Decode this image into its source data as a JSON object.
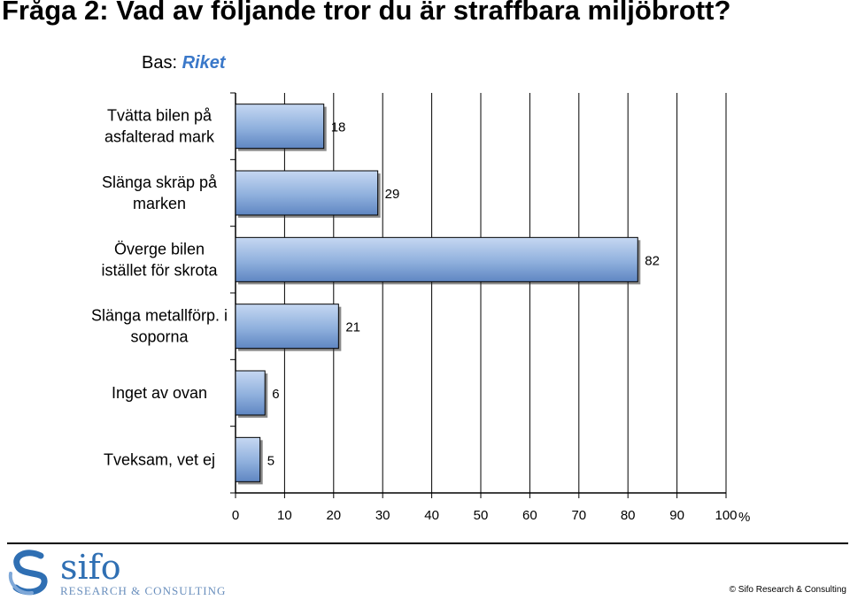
{
  "title": "Fråga 2:  Vad av följande tror du är straffbara miljöbrott?",
  "base": {
    "label": "Bas:",
    "value": "Riket"
  },
  "chart_data": {
    "type": "bar",
    "orientation": "horizontal",
    "categories": [
      [
        "Tvätta bilen på",
        "asfalterad mark"
      ],
      [
        "Slänga skräp på",
        "marken"
      ],
      [
        "Överge bilen",
        "istället för skrota"
      ],
      [
        "Slänga metallförp. i",
        "soporna"
      ],
      [
        "Inget av ovan"
      ],
      [
        "Tveksam, vet ej"
      ]
    ],
    "values": [
      18,
      29,
      82,
      21,
      6,
      5
    ],
    "data_labels": [
      "18",
      "29",
      "82",
      "21",
      "6",
      "5"
    ],
    "xlim": [
      0,
      100
    ],
    "xticks": [
      "0",
      "10",
      "20",
      "30",
      "40",
      "50",
      "60",
      "70",
      "80",
      "90",
      "100"
    ],
    "x_unit": "%",
    "grid": true,
    "bar_color": "#8fb0dd"
  },
  "logo": {
    "name": "sifo",
    "tagline": "RESEARCH & CONSULTING"
  },
  "copyright": "© Sifo Research & Consulting"
}
